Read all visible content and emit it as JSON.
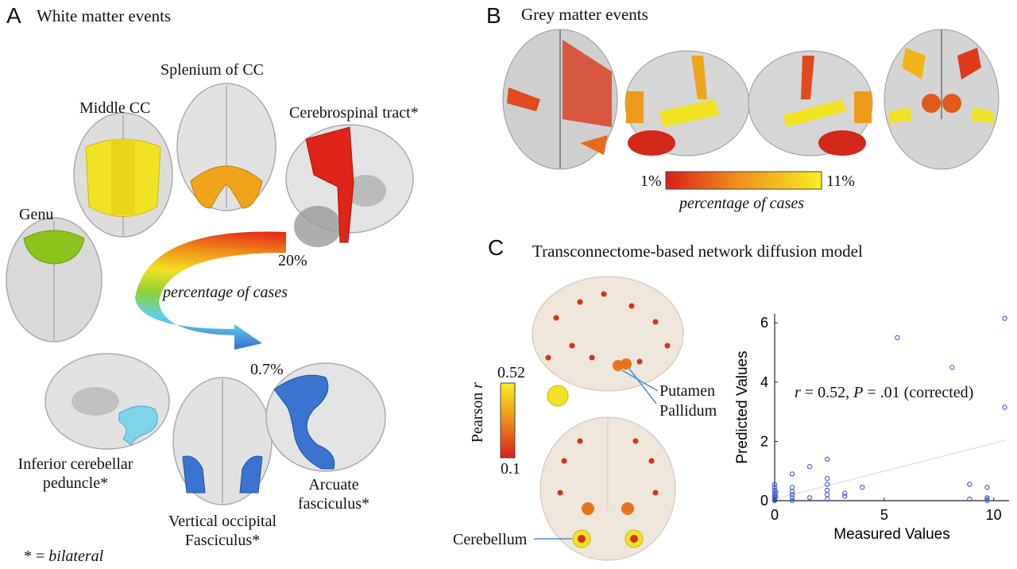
{
  "panel_a": {
    "letter": "A",
    "title": "White matter events",
    "labels": {
      "genu": "Genu",
      "middle_cc": "Middle CC",
      "splenium": "Splenium of CC",
      "cerebrospinal": "Cerebrospinal tract*",
      "inferior_cerebellar_1": "Inferior cerebellar",
      "inferior_cerebellar_2": "peduncle*",
      "vertical_occipital_1": "Vertical occipital",
      "vertical_occipital_2": "Fasciculus*",
      "arcuate_1": "Arcuate",
      "arcuate_2": "fasciculus*"
    },
    "arrow": {
      "top_value": "20%",
      "bottom_value": "0.7%",
      "caption": "percentage of cases"
    },
    "footnote_star": "* =",
    "footnote_text": "bilateral"
  },
  "panel_b": {
    "letter": "B",
    "title": "Grey matter events",
    "colorbar": {
      "min": "1%",
      "max": "11%",
      "caption": "percentage of cases"
    }
  },
  "panel_c": {
    "letter": "C",
    "title": "Transconnectome-based network diffusion model",
    "colorbar": {
      "label_pre": "Pearson",
      "label_var": "r",
      "max": "0.52",
      "min": "0.1"
    },
    "labels": {
      "putamen": "Putamen",
      "pallidum": "Pallidum",
      "cerebellum": "Cerebellum"
    }
  },
  "colors": {
    "marker": "#4a5fd6",
    "fit_line": "#dddddd",
    "yellow": "#f2e224",
    "orange": "#f29a1c",
    "red": "#d92218",
    "light_blue": "#6fd0e8",
    "blue": "#3a74d0",
    "green": "#8cc21c"
  },
  "chart_data": {
    "type": "scatter",
    "xlabel": "Measured Values",
    "ylabel": "Predicted Values",
    "xlim": [
      0,
      10.7
    ],
    "ylim": [
      0,
      6.3
    ],
    "xticks": [
      "0",
      "5",
      "10"
    ],
    "yticks": [
      "0",
      "2",
      "4",
      "6"
    ],
    "annotation": {
      "r": "r",
      "r_text": " = 0.52, ",
      "p": "P",
      "p_text": " = .01 (corrected)"
    },
    "trendline": {
      "x": [
        0,
        10.6
      ],
      "y": [
        0.05,
        2.05
      ]
    },
    "points": [
      [
        0,
        0
      ],
      [
        0,
        0.02
      ],
      [
        0,
        0.05
      ],
      [
        0,
        0.08
      ],
      [
        0,
        0.12
      ],
      [
        0,
        0.18
      ],
      [
        0,
        0.25
      ],
      [
        0,
        0.35
      ],
      [
        0,
        0.45
      ],
      [
        0,
        0.55
      ],
      [
        0.05,
        0.3
      ],
      [
        0.05,
        0.15
      ],
      [
        0.8,
        0
      ],
      [
        0.8,
        0.1
      ],
      [
        0.8,
        0.2
      ],
      [
        0.8,
        0.3
      ],
      [
        0.8,
        0.45
      ],
      [
        0.8,
        0.9
      ],
      [
        1.6,
        0.1
      ],
      [
        1.6,
        1.15
      ],
      [
        2.4,
        0.05
      ],
      [
        2.4,
        0.2
      ],
      [
        2.4,
        0.35
      ],
      [
        2.4,
        0.55
      ],
      [
        2.4,
        0.75
      ],
      [
        2.4,
        1.4
      ],
      [
        3.2,
        0.15
      ],
      [
        3.2,
        0.25
      ],
      [
        4.0,
        0.45
      ],
      [
        5.6,
        5.5
      ],
      [
        8.1,
        4.5
      ],
      [
        8.9,
        0.05
      ],
      [
        8.9,
        0.55
      ],
      [
        9.7,
        0
      ],
      [
        9.7,
        0.05
      ],
      [
        9.7,
        0.1
      ],
      [
        9.7,
        0.45
      ],
      [
        10.5,
        3.15
      ],
      [
        10.5,
        6.15
      ]
    ]
  }
}
